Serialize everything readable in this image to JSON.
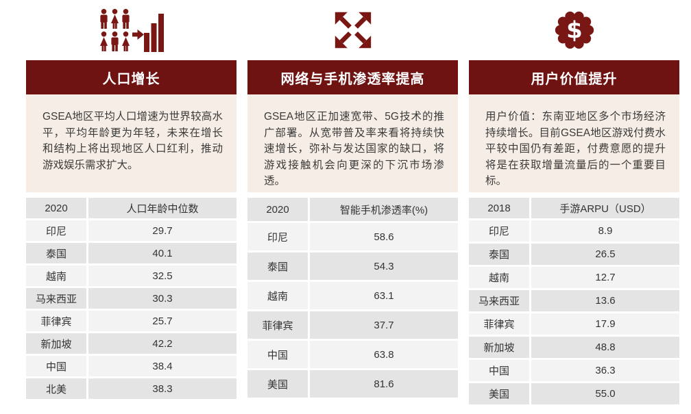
{
  "theme": {
    "accent": "#6E1212",
    "icon_color": "#791714",
    "panel_bg": "#F6EEE6",
    "row_dark": "#E4E4E4",
    "row_light": "#F3F3F3",
    "background": "#FFFFFF"
  },
  "columns": [
    {
      "id": "population-growth",
      "icon": "population-growth-icon",
      "title": "人口增长",
      "description": "GSEA地区平均人口增速为世界较高水平，平均年龄更为年轻，未来在增长和结构上将出现地区人口红利，推动游戏娱乐需求扩大。",
      "table": {
        "headers": [
          "2020",
          "人口年龄中位数"
        ],
        "rows": [
          [
            "印尼",
            "29.7"
          ],
          [
            "泰国",
            "40.1"
          ],
          [
            "越南",
            "32.5"
          ],
          [
            "马来西亚",
            "30.3"
          ],
          [
            "菲律宾",
            "25.7"
          ],
          [
            "新加坡",
            "42.2"
          ],
          [
            "中国",
            "38.4"
          ],
          [
            "北美",
            "38.3"
          ]
        ]
      }
    },
    {
      "id": "penetration-increase",
      "icon": "expand-arrows-icon",
      "title": "网络与手机渗透率提高",
      "description": "GSEA地区正加速宽带、5G技术的推广部署。从宽带普及率来看将持续快速增长，弥补与发达国家的缺口，将游戏接触机会向更深的下沉市场渗透。",
      "table": {
        "headers": [
          "2020",
          "智能手机渗透率(%)"
        ],
        "rows": [
          [
            "印尼",
            "58.6"
          ],
          [
            "泰国",
            "54.3"
          ],
          [
            "越南",
            "63.1"
          ],
          [
            "菲律宾",
            "37.7"
          ],
          [
            "中国",
            "63.8"
          ],
          [
            "美国",
            "81.6"
          ]
        ]
      }
    },
    {
      "id": "user-value-uplift",
      "icon": "dollar-badge-icon",
      "title": "用户价值提升",
      "description": "用户价值：东南亚地区多个市场经济持续增长。目前GSEA地区游戏付费水平较中国仍有差距，付费意愿的提升将是在获取增量流量后的一个重要目标。",
      "table": {
        "headers": [
          "2018",
          "手游ARPU（USD）"
        ],
        "rows": [
          [
            "印尼",
            "8.9"
          ],
          [
            "泰国",
            "26.5"
          ],
          [
            "越南",
            "12.7"
          ],
          [
            "马来西亚",
            "13.6"
          ],
          [
            "菲律宾",
            "17.9"
          ],
          [
            "新加坡",
            "48.8"
          ],
          [
            "中国",
            "36.3"
          ],
          [
            "美国",
            "55.0"
          ]
        ]
      }
    }
  ]
}
